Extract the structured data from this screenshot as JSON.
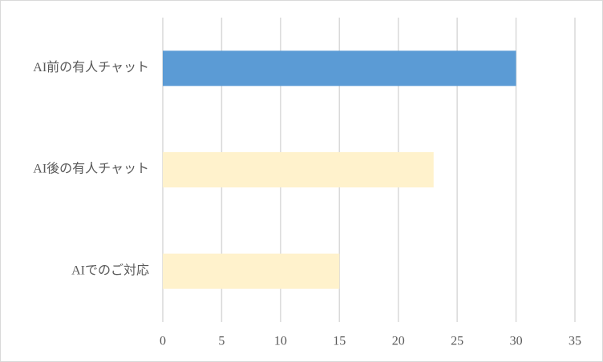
{
  "chart_data": {
    "type": "bar",
    "orientation": "horizontal",
    "categories": [
      "AI前の有人チャット",
      "AI後の有人チャット",
      "AIでのご対応"
    ],
    "values": [
      30,
      23,
      15
    ],
    "colors": [
      "#5b9bd5",
      "#fff2cc",
      "#fff2cc"
    ],
    "xlim": [
      0,
      35
    ],
    "xticks": [
      0,
      5,
      10,
      15,
      20,
      25,
      30,
      35
    ],
    "grid": true
  }
}
